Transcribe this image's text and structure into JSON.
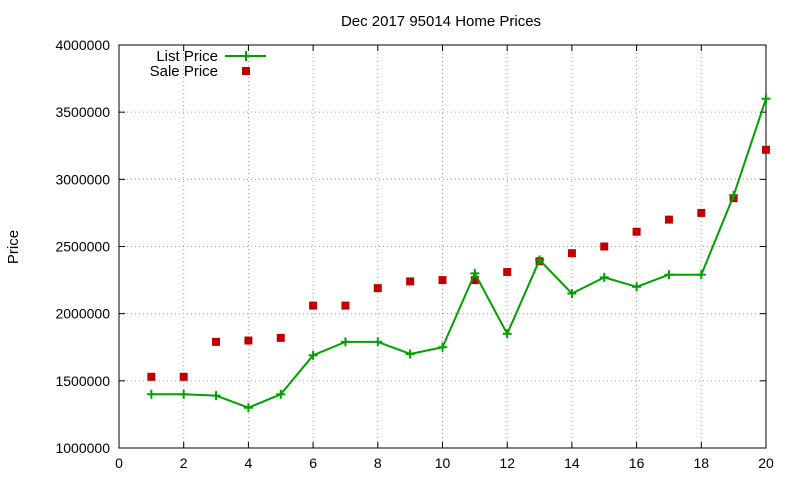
{
  "chart_data": {
    "type": "line",
    "title": "Dec 2017 95014 Home Prices",
    "xlabel": "",
    "ylabel": "Price",
    "xlim": [
      0,
      20
    ],
    "ylim": [
      1000000,
      4000000
    ],
    "x_ticks": [
      0,
      2,
      4,
      6,
      8,
      10,
      12,
      14,
      16,
      18,
      20
    ],
    "y_ticks": [
      1000000,
      1500000,
      2000000,
      2500000,
      3000000,
      3500000,
      4000000
    ],
    "grid": true,
    "legend_position": "top-left",
    "x": [
      1,
      2,
      3,
      4,
      5,
      6,
      7,
      8,
      9,
      10,
      11,
      12,
      13,
      14,
      15,
      16,
      17,
      18,
      19,
      20
    ],
    "series": [
      {
        "name": "List Price",
        "style": "lines+points",
        "marker": "plus",
        "color": "#00a000",
        "values": [
          1400000,
          1400000,
          1390000,
          1300000,
          1400000,
          1690000,
          1790000,
          1790000,
          1700000,
          1750000,
          2300000,
          1850000,
          2400000,
          2150000,
          2270000,
          2200000,
          2290000,
          2290000,
          2880000,
          3600000
        ]
      },
      {
        "name": "Sale Price",
        "style": "points",
        "marker": "square",
        "color": "#c00000",
        "values": [
          1530000,
          1530000,
          1790000,
          1800000,
          1820000,
          2060000,
          2060000,
          2190000,
          2240000,
          2250000,
          2250000,
          2310000,
          2390000,
          2450000,
          2500000,
          2610000,
          2700000,
          2750000,
          2860000,
          3220000
        ]
      }
    ]
  }
}
